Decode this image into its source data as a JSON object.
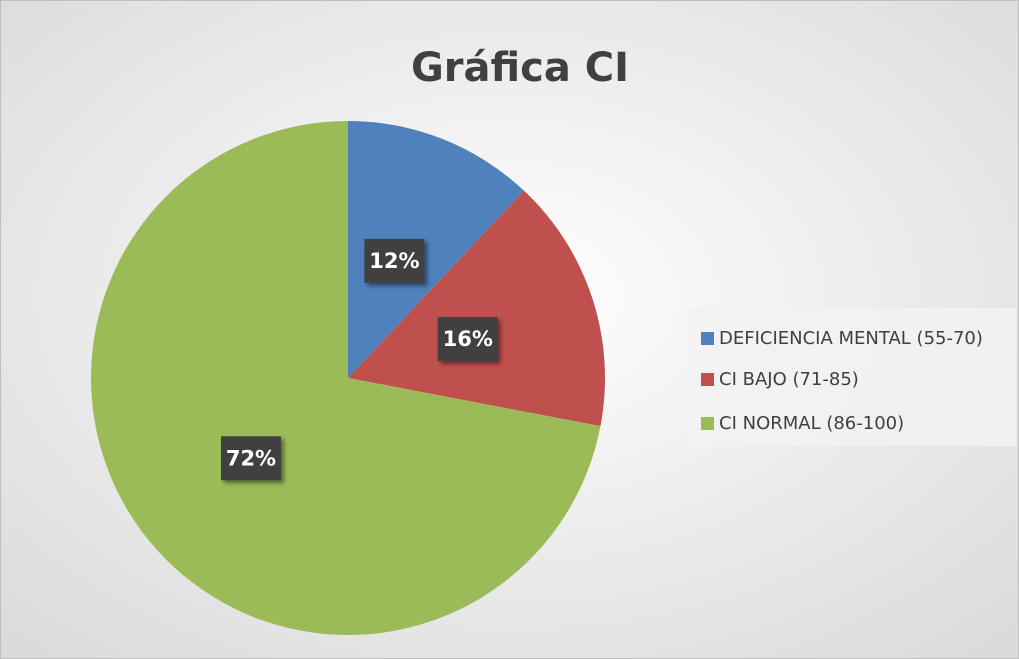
{
  "chart_data": {
    "type": "pie",
    "title": "Gráfica CI",
    "categories": [
      "DEFICIENCIA MENTAL (55-70)",
      "CI BAJO (71-85)",
      "CI NORMAL (86-100)"
    ],
    "values": [
      12,
      16,
      72
    ],
    "value_labels": [
      "12%",
      "16%",
      "72%"
    ],
    "colors": [
      "#4f81bd",
      "#c0504d",
      "#9bbb59"
    ],
    "legend": "right"
  }
}
